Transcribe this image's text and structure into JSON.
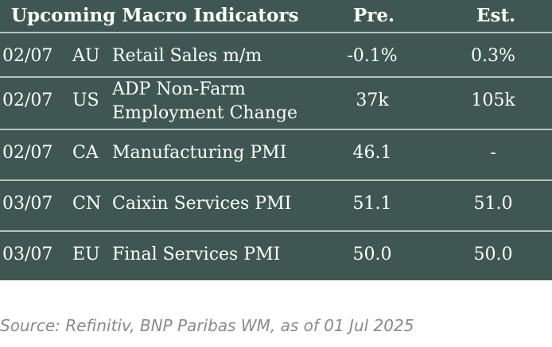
{
  "header": {
    "title": "Upcoming Macro Indicators",
    "pre_label": "Pre.",
    "est_label": "Est."
  },
  "rows": [
    {
      "date": "02/07",
      "country": "AU",
      "indicator": "Retail Sales m/m",
      "pre": "-0.1%",
      "est": "0.3%"
    },
    {
      "date": "02/07",
      "country": "US",
      "indicator_line1": "ADP Non-Farm",
      "indicator_line2": "Employment Change",
      "pre": "37k",
      "est": "105k"
    },
    {
      "date": "02/07",
      "country": "CA",
      "indicator": "Manufacturing PMI",
      "pre": "46.1",
      "est": "-"
    },
    {
      "date": "03/07",
      "country": "CN",
      "indicator": "Caixin Services PMI",
      "pre": "51.1",
      "est": "51.0"
    },
    {
      "date": "03/07",
      "country": "EU",
      "indicator": "Final Services PMI",
      "pre": "50.0",
      "est": "50.0"
    }
  ],
  "source": "Source: Refinitiv, BNP Paribas WM, as of 01 Jul 2025",
  "colors": {
    "panel_background": "#3f5752",
    "divider": "#b8c4bf",
    "text": "#ffffff",
    "source_text": "#8a8a8a"
  }
}
